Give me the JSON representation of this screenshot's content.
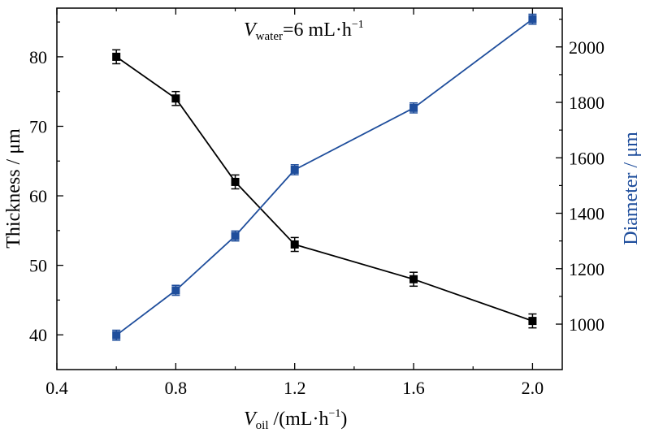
{
  "chart_data": {
    "type": "line",
    "annotation": {
      "main": "V",
      "sub": "water",
      "rest": "=6 mL·h",
      "sup": "−1"
    },
    "xlabel": {
      "main": "V",
      "sub": "oil",
      "rest": " /(mL·h",
      "sup": "−1",
      "close": ")"
    },
    "ylabel_left": "Thickness / μm",
    "ylabel_right": "Diameter / μm",
    "xlim": [
      0.4,
      2.1
    ],
    "ylim_left": [
      35,
      87
    ],
    "ylim_right": [
      836,
      2140
    ],
    "xticks": [
      "0.4",
      "0.8",
      "1.2",
      "1.6",
      "2.0"
    ],
    "xtick_values": [
      0.4,
      0.8,
      1.2,
      1.6,
      2.0
    ],
    "yticks_left": [
      "40",
      "50",
      "60",
      "70",
      "80"
    ],
    "ytick_values_left": [
      40,
      50,
      60,
      70,
      80
    ],
    "yticks_right": [
      "1000",
      "1200",
      "1400",
      "1600",
      "1800",
      "2000"
    ],
    "ytick_values_right": [
      1000,
      1200,
      1400,
      1600,
      1800,
      2000
    ],
    "grid": false,
    "series": [
      {
        "axis": "left",
        "color": "#000000",
        "x": [
          0.6,
          0.8,
          1.0,
          1.2,
          1.6,
          2.0
        ],
        "y": [
          80,
          74,
          62,
          53,
          48,
          42
        ],
        "error": [
          1,
          1,
          1,
          1,
          1,
          1
        ]
      },
      {
        "axis": "right",
        "color": "#1f4e9c",
        "x": [
          0.6,
          0.8,
          1.0,
          1.2,
          1.6,
          2.0
        ],
        "y": [
          960,
          1122,
          1318,
          1557,
          1780,
          2100
        ],
        "error": [
          18,
          18,
          18,
          18,
          18,
          18
        ]
      }
    ]
  }
}
